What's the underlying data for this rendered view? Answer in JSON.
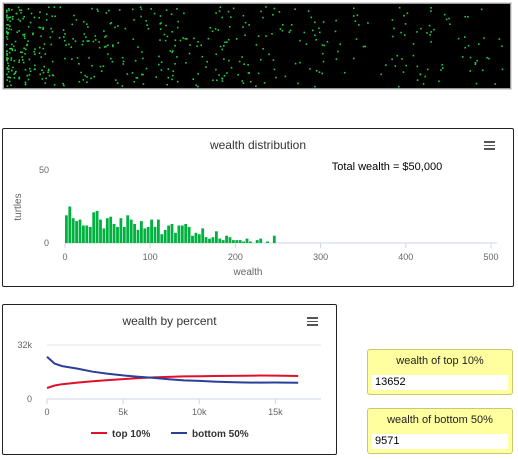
{
  "world": {
    "background": "#000000",
    "turtle_color": "#22cc44"
  },
  "histogram": {
    "title": "wealth distribution",
    "annotation": "Total wealth = $50,000",
    "menu_icon": "hamburger-menu-icon",
    "chart_data": {
      "type": "bar",
      "xlabel": "wealth",
      "ylabel": "turtles",
      "xlim": [
        0,
        500
      ],
      "ylim": [
        0,
        50
      ],
      "x_ticks": [
        "0",
        "100",
        "200",
        "300",
        "400",
        "500"
      ],
      "y_ticks": [
        "0",
        "50"
      ],
      "bin_width": 4,
      "color": "#00b140",
      "values": [
        19,
        25,
        17,
        15,
        16,
        12,
        12,
        11,
        21,
        22,
        16,
        10,
        17,
        18,
        13,
        11,
        17,
        11,
        19,
        16,
        13,
        9,
        15,
        10,
        11,
        16,
        11,
        16,
        6,
        9,
        12,
        13,
        7,
        12,
        12,
        13,
        11,
        5,
        7,
        6,
        10,
        4,
        3,
        4,
        8,
        3,
        2,
        5,
        4,
        2,
        2,
        2,
        1,
        3,
        1,
        0,
        2,
        3,
        0,
        1,
        0,
        5
      ]
    }
  },
  "percent": {
    "title": "wealth by percent",
    "menu_icon": "hamburger-menu-icon",
    "chart_data": {
      "type": "line",
      "xlim": [
        0,
        18000
      ],
      "ylim": [
        0,
        32000
      ],
      "x_ticks": [
        "0",
        "5k",
        "10k",
        "15k"
      ],
      "y_ticks": [
        "0",
        "32k"
      ],
      "x": [
        0,
        500,
        1000,
        2000,
        3000,
        4000,
        5000,
        6000,
        7000,
        8000,
        9000,
        10000,
        11000,
        12000,
        13000,
        14000,
        15000,
        16500
      ],
      "series": [
        {
          "name": "top 10%",
          "color": "#e0102a",
          "values": [
            6500,
            8000,
            8800,
            9700,
            10500,
            11200,
            11800,
            12400,
            12800,
            13100,
            13400,
            13500,
            13600,
            13700,
            13800,
            13900,
            13850,
            13652
          ]
        },
        {
          "name": "bottom 50%",
          "color": "#2a3f9a",
          "values": [
            25000,
            21000,
            19500,
            18000,
            16200,
            15000,
            14000,
            13200,
            12500,
            11700,
            11000,
            10700,
            10300,
            10000,
            9800,
            9700,
            9800,
            9571
          ]
        }
      ]
    }
  },
  "monitors": {
    "top10": {
      "label": "wealth of top 10%",
      "value": "13652"
    },
    "bottom50": {
      "label": "wealth of bottom 50%",
      "value": "9571"
    }
  }
}
